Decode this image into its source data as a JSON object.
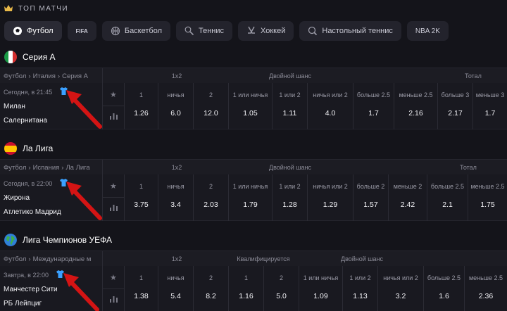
{
  "header": {
    "title": "ТОП МАТЧИ"
  },
  "tabs": [
    {
      "label": "Футбол",
      "icon": "soccer-ball-icon",
      "active": true
    },
    {
      "label": "FIFA",
      "icon": "fifa-icon",
      "badge": "FIFA"
    },
    {
      "label": "Баскетбол",
      "icon": "basketball-icon"
    },
    {
      "label": "Теннис",
      "icon": "tennis-icon"
    },
    {
      "label": "Хоккей",
      "icon": "hockey-icon"
    },
    {
      "label": "Настольный теннис",
      "icon": "table-tennis-icon"
    },
    {
      "label": "NBA 2K",
      "icon": "nba2k-icon",
      "badge": "NBA 2K"
    }
  ],
  "leagues": [
    {
      "name": "Серия А",
      "flag": "italy-flag-icon",
      "breadcrumb": [
        "Футбол",
        "Италия",
        "Серия А"
      ],
      "groups": [
        "1x2",
        "Двойной шанс",
        "Тотал"
      ],
      "match": {
        "time": "Сегодня, в 21:45",
        "team1": "Милан",
        "team2": "Салернитана",
        "odds": [
          {
            "label": "1",
            "value": "1.26"
          },
          {
            "label": "ничья",
            "value": "6.0"
          },
          {
            "label": "2",
            "value": "12.0"
          },
          {
            "label": "1 или ничья",
            "value": "1.05"
          },
          {
            "label": "1 или 2",
            "value": "1.11"
          },
          {
            "label": "ничья или 2",
            "value": "4.0"
          },
          {
            "label": "больше 2.5",
            "value": "1.7"
          },
          {
            "label": "меньше 2.5",
            "value": "2.16"
          },
          {
            "label": "больше 3",
            "value": "2.17"
          },
          {
            "label": "меньше 3",
            "value": "1.7"
          }
        ]
      }
    },
    {
      "name": "Ла Лига",
      "flag": "spain-flag-icon",
      "breadcrumb": [
        "Футбол",
        "Испания",
        "Ла Лига"
      ],
      "groups": [
        "1x2",
        "Двойной шанс",
        "Тотал"
      ],
      "match": {
        "time": "Сегодня, в 22:00",
        "team1": "Жирона",
        "team2": "Атлетико Мадрид",
        "odds": [
          {
            "label": "1",
            "value": "3.75"
          },
          {
            "label": "ничья",
            "value": "3.4"
          },
          {
            "label": "2",
            "value": "2.03"
          },
          {
            "label": "1 или ничья",
            "value": "1.79"
          },
          {
            "label": "1 или 2",
            "value": "1.28"
          },
          {
            "label": "ничья или 2",
            "value": "1.29"
          },
          {
            "label": "больше 2",
            "value": "1.57"
          },
          {
            "label": "меньше 2",
            "value": "2.42"
          },
          {
            "label": "больше 2.5",
            "value": "2.1"
          },
          {
            "label": "меньше 2.5",
            "value": "1.75"
          }
        ]
      }
    },
    {
      "name": "Лига Чемпионов УЕФА",
      "flag": "globe-icon",
      "breadcrumb": [
        "Футбол",
        "Международные матчи"
      ],
      "groups": [
        "1x2",
        "Квалифицируется",
        "Двойной шанс"
      ],
      "match": {
        "time": "Завтра, в 22:00",
        "team1": "Манчестер Сити",
        "team2": "РБ Лейпциг",
        "odds": [
          {
            "label": "1",
            "value": "1.38"
          },
          {
            "label": "ничья",
            "value": "5.4"
          },
          {
            "label": "2",
            "value": "8.2"
          },
          {
            "label": "1",
            "value": "1.16"
          },
          {
            "label": "2",
            "value": "5.0"
          },
          {
            "label": "1 или ничья",
            "value": "1.09"
          },
          {
            "label": "1 или 2",
            "value": "1.13"
          },
          {
            "label": "ничья или 2",
            "value": "3.2"
          },
          {
            "label": "больше 2.5",
            "value": "1.6"
          },
          {
            "label": "меньше 2.5",
            "value": "2.36"
          }
        ]
      }
    }
  ],
  "colors": {
    "background": "#14141a",
    "accent_shirt": "#3aa0ff",
    "arrow": "#d41414",
    "crown": "#e9b949"
  }
}
